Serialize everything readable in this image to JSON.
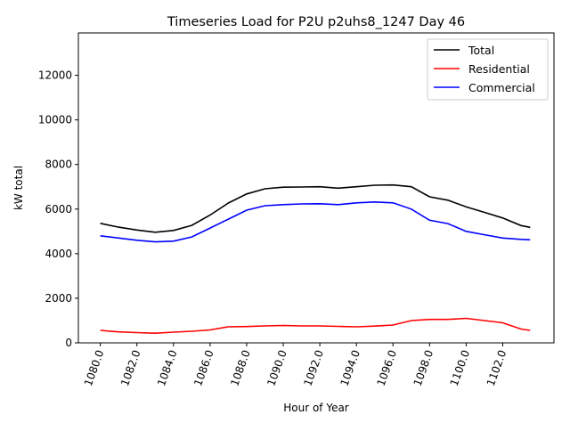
{
  "chart_data": {
    "type": "line",
    "title": "Timeseries Load for P2U p2uhs8_1247  Day 46",
    "xlabel": "Hour of Year",
    "ylabel": "kW total",
    "xlim": [
      1078.8,
      1104.8
    ],
    "ylim": [
      0,
      13900
    ],
    "xticks": [
      1080,
      1082,
      1084,
      1086,
      1088,
      1090,
      1092,
      1094,
      1096,
      1098,
      1100,
      1102
    ],
    "xtick_labels": [
      "1080.0",
      "1082.0",
      "1084.0",
      "1086.0",
      "1088.0",
      "1090.0",
      "1092.0",
      "1094.0",
      "1096.0",
      "1098.0",
      "1100.0",
      "1102.0"
    ],
    "yticks": [
      0,
      2000,
      4000,
      6000,
      8000,
      10000,
      12000
    ],
    "ytick_labels": [
      "0",
      "2000",
      "4000",
      "6000",
      "8000",
      "10000",
      "12000"
    ],
    "grid": false,
    "legend_position": "top-right",
    "x": [
      1080,
      1081,
      1082,
      1083,
      1084,
      1085,
      1086,
      1087,
      1088,
      1089,
      1090,
      1091,
      1092,
      1093,
      1094,
      1095,
      1096,
      1097,
      1098,
      1099,
      1100,
      1101,
      1102,
      1103,
      1103.5
    ],
    "series": [
      {
        "name": "Total",
        "color": "#000000",
        "values": [
          5360,
          5190,
          5060,
          4960,
          5040,
          5270,
          5730,
          6270,
          6680,
          6910,
          6980,
          6990,
          7000,
          6940,
          7000,
          7070,
          7080,
          7000,
          6550,
          6400,
          6100,
          5850,
          5600,
          5260,
          5180
        ]
      },
      {
        "name": "Residential",
        "color": "#ff0000",
        "values": [
          560,
          490,
          460,
          430,
          480,
          520,
          580,
          720,
          730,
          760,
          780,
          760,
          760,
          740,
          720,
          750,
          800,
          1000,
          1050,
          1050,
          1100,
          1000,
          900,
          620,
          560
        ]
      },
      {
        "name": "Commercial",
        "color": "#0000ff",
        "values": [
          4800,
          4700,
          4600,
          4530,
          4560,
          4750,
          5150,
          5550,
          5950,
          6150,
          6200,
          6230,
          6240,
          6200,
          6280,
          6320,
          6280,
          6000,
          5500,
          5350,
          5000,
          4850,
          4700,
          4640,
          4620
        ]
      }
    ]
  }
}
